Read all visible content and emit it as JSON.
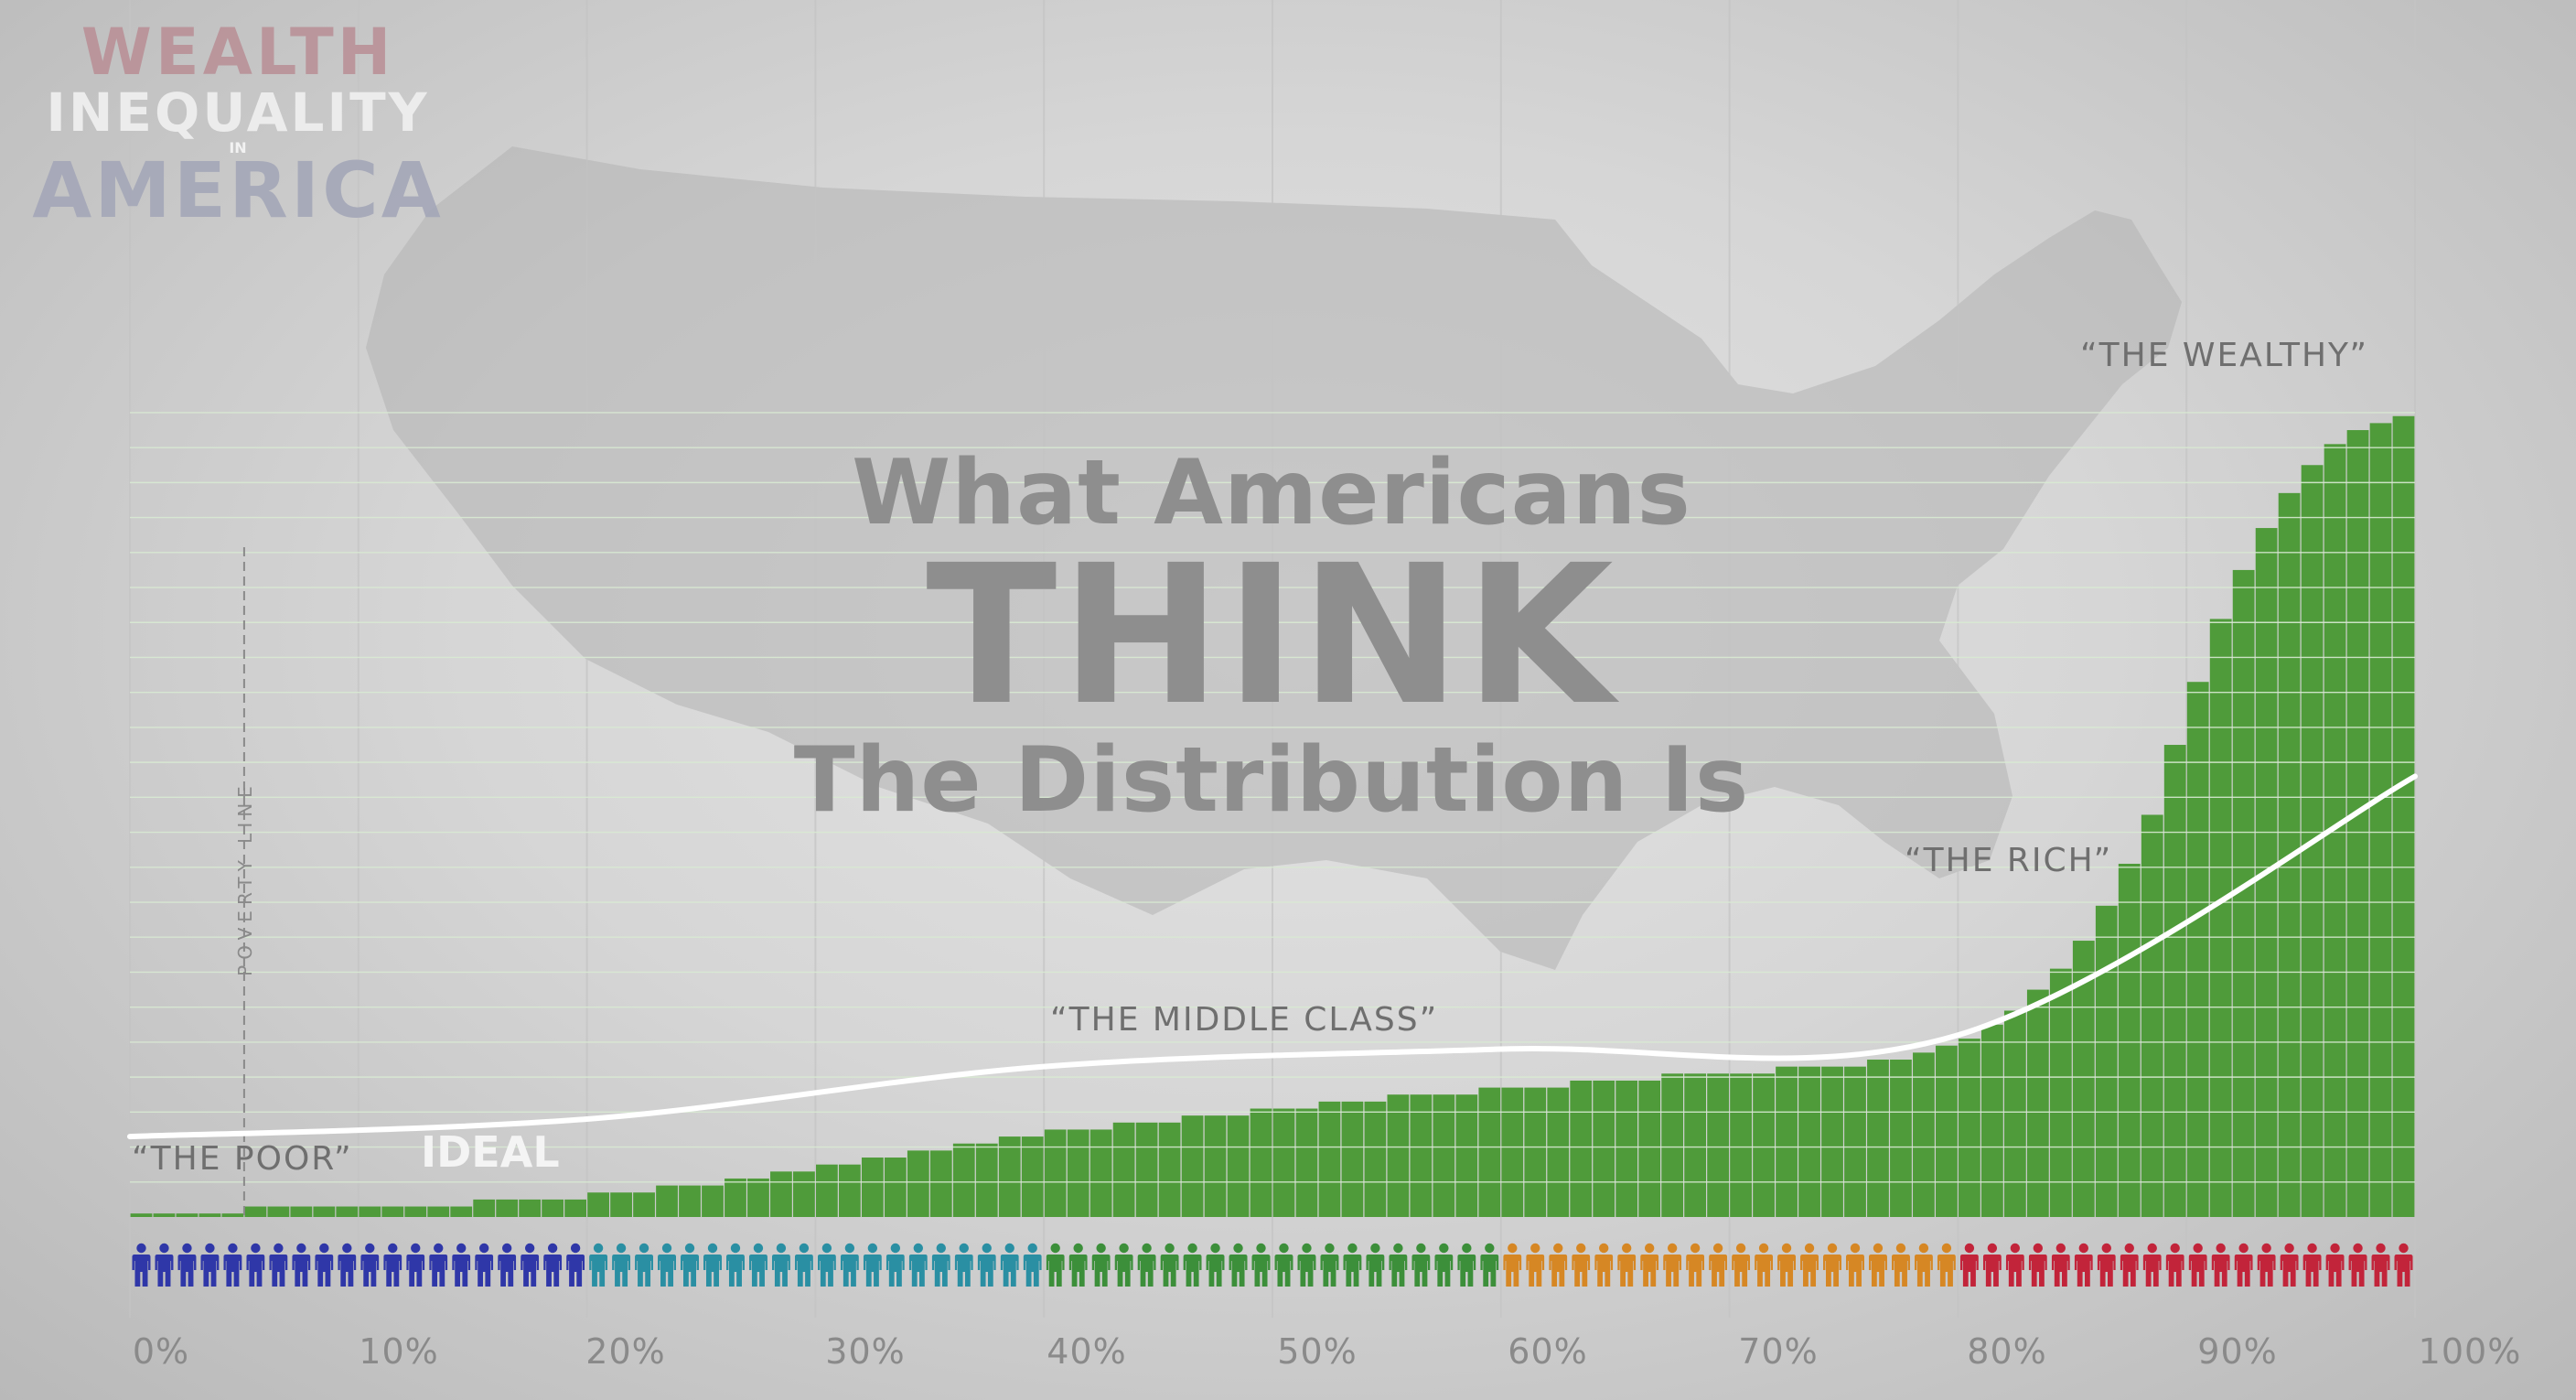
{
  "logo": {
    "line1": "WEALTH",
    "line2": "INEQUALITY",
    "line3": "IN",
    "line4": "AMERICA"
  },
  "headline": {
    "line1": "What Americans",
    "line2": "THINK",
    "line3": "The Distribution Is"
  },
  "labels": {
    "poor": "“THE POOR”",
    "ideal": "IDEAL",
    "middle": "“THE MIDDLE CLASS”",
    "rich": "“THE RICH”",
    "wealthy": "“THE WEALTHY”",
    "poverty_line": "POVERTY LINE"
  },
  "colors": {
    "bar": "#4f9b3a",
    "ideal_line": "#ffffff",
    "people": [
      "#2f37a8",
      "#2f37a8",
      "#2a8fa3",
      "#2a8fa3",
      "#3c8f3a",
      "#3c8f3a",
      "#d68724",
      "#d68724",
      "#c2243a",
      "#c2243a"
    ]
  },
  "icons": {
    "person": "person-icon",
    "background": "usa-map"
  },
  "chart_data": {
    "type": "bar",
    "title": "What Americans THINK The Distribution Is",
    "x_tick_labels": [
      "0%",
      "10%",
      "20%",
      "30%",
      "40%",
      "50%",
      "60%",
      "70%",
      "80%",
      "90%",
      "100%"
    ],
    "xlim": [
      0,
      100
    ],
    "groups": [
      "“THE POOR”",
      "“THE MIDDLE CLASS”",
      "“THE RICH”",
      "“THE WEALTHY”"
    ],
    "series": [
      {
        "values": [
          0.5,
          0.5,
          0.5,
          0.5,
          0.5,
          1.5,
          1.5,
          1.5,
          1.5,
          1.5,
          1.5,
          1.5,
          1.5,
          1.5,
          1.5,
          2.5,
          2.5,
          2.5,
          2.5,
          2.5,
          3.5,
          3.5,
          3.5,
          4.5,
          4.5,
          4.5,
          5.5,
          5.5,
          6.5,
          6.5,
          7.5,
          7.5,
          8.5,
          8.5,
          9.5,
          9.5,
          10.5,
          10.5,
          11.5,
          11.5,
          12.5,
          12.5,
          12.5,
          13.5,
          13.5,
          13.5,
          14.5,
          14.5,
          14.5,
          15.5,
          15.5,
          15.5,
          16.5,
          16.5,
          16.5,
          17.5,
          17.5,
          17.5,
          17.5,
          18.5,
          18.5,
          18.5,
          18.5,
          19.5,
          19.5,
          19.5,
          19.5,
          20.5,
          20.5,
          20.5,
          20.5,
          20.5,
          21.5,
          21.5,
          21.5,
          21.5,
          22.5,
          22.5,
          23.5,
          24.5,
          25.5,
          27.5,
          29.5,
          32.5,
          35.5,
          39.5,
          44.5,
          50.5,
          57.5,
          67.5,
          76.5,
          85.5,
          92.5,
          98.5,
          103.5,
          107.5,
          110.5,
          112.5,
          113.5,
          114.5
        ]
      },
      {
        "name": "IDEAL",
        "x": [
          0,
          20,
          40,
          60,
          80,
          100
        ],
        "values": [
          11.5,
          14,
          21.5,
          24,
          26,
          63
        ]
      }
    ],
    "ylim": [
      0,
      118
    ],
    "poverty_line_x": 5,
    "grid": "vertical",
    "people_per_decile": 10
  }
}
